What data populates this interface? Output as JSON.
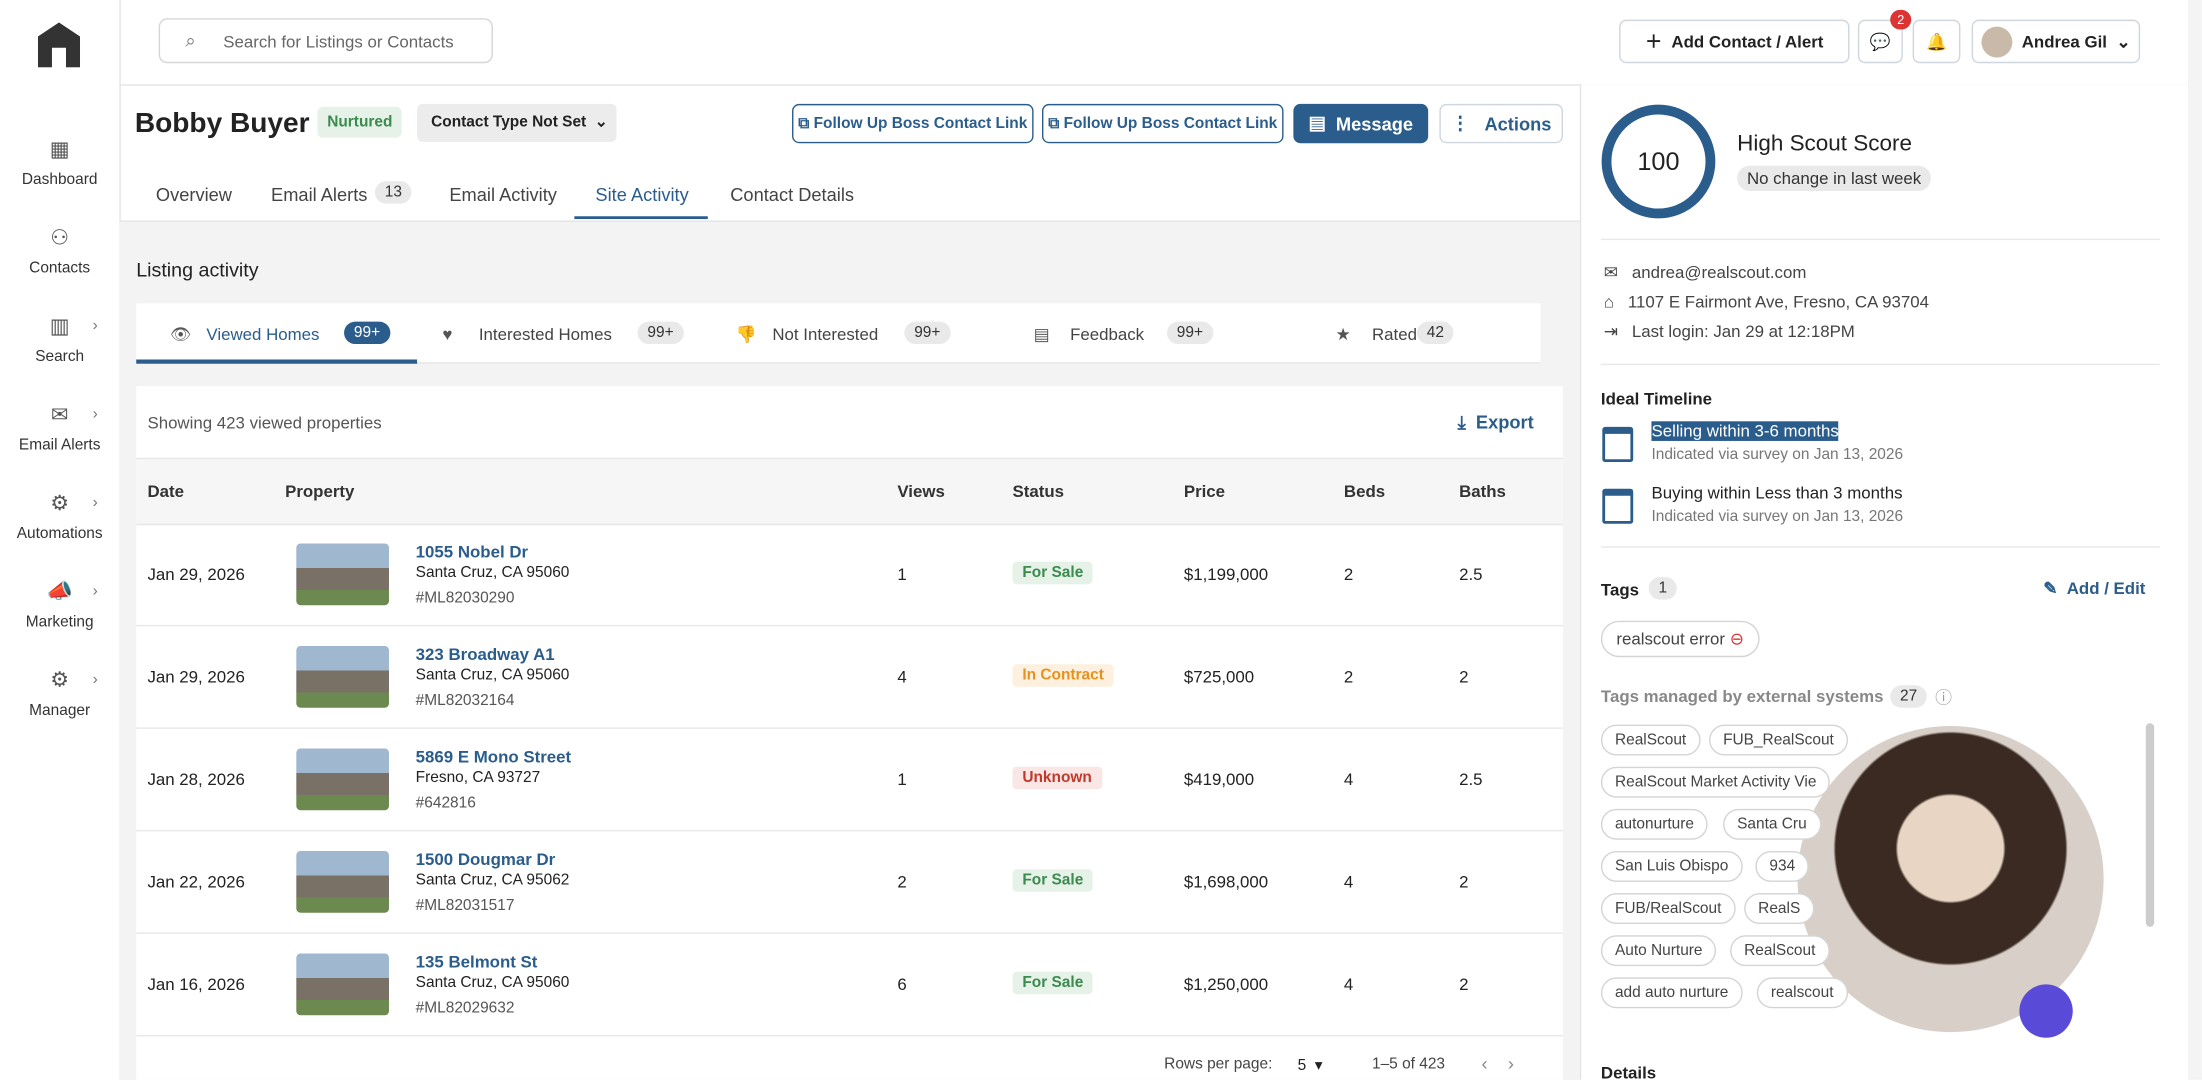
{
  "sidebar": {
    "items": [
      "Dashboard",
      "Contacts",
      "Search",
      "Email Alerts",
      "Automations",
      "Marketing",
      "Manager"
    ]
  },
  "topbar": {
    "search_placeholder": "Search for Listings or Contacts",
    "add_button": "Add Contact / Alert",
    "message_badge": "2",
    "user": "Andrea Gil"
  },
  "contact": {
    "name": "Bobby Buyer",
    "status": "Nurtured",
    "contact_type": "Contact Type Not Set",
    "link_buttons": [
      "Follow Up Boss Contact Link",
      "Follow Up Boss Contact Link"
    ],
    "message_button": "Message",
    "actions_button": "Actions"
  },
  "tabs": [
    {
      "label": "Overview"
    },
    {
      "label": "Email Alerts",
      "count": "13"
    },
    {
      "label": "Email Activity"
    },
    {
      "label": "Site Activity"
    },
    {
      "label": "Contact Details"
    }
  ],
  "listing": {
    "title": "Listing activity",
    "subtabs": [
      {
        "label": "Viewed Homes",
        "count": "99+"
      },
      {
        "label": "Interested Homes",
        "count": "99+"
      },
      {
        "label": "Not Interested",
        "count": "99+"
      },
      {
        "label": "Feedback",
        "count": "99+"
      },
      {
        "label": "Rated",
        "count": "42"
      }
    ],
    "summary": "Showing 423 viewed properties",
    "export": "Export",
    "columns": [
      "Date",
      "Property",
      "Views",
      "Status",
      "Price",
      "Beds",
      "Baths"
    ],
    "rows": [
      {
        "date": "Jan 29, 2026",
        "address": "1055 Nobel Dr",
        "city": "Santa Cruz, CA 95060",
        "mls": "#ML82030290",
        "views": "1",
        "status": "For Sale",
        "price": "$1,199,000",
        "beds": "2",
        "baths": "2.5"
      },
      {
        "date": "Jan 29, 2026",
        "address": "323 Broadway A1",
        "city": "Santa Cruz, CA 95060",
        "mls": "#ML82032164",
        "views": "4",
        "status": "In Contract",
        "price": "$725,000",
        "beds": "2",
        "baths": "2"
      },
      {
        "date": "Jan 28, 2026",
        "address": "5869 E Mono Street",
        "city": "Fresno, CA 93727",
        "mls": "#642816",
        "views": "1",
        "status": "Unknown",
        "price": "$419,000",
        "beds": "4",
        "baths": "2.5"
      },
      {
        "date": "Jan 22, 2026",
        "address": "1500 Dougmar Dr",
        "city": "Santa Cruz, CA 95062",
        "mls": "#ML82031517",
        "views": "2",
        "status": "For Sale",
        "price": "$1,698,000",
        "beds": "4",
        "baths": "2"
      },
      {
        "date": "Jan 16, 2026",
        "address": "135 Belmont St",
        "city": "Santa Cruz, CA 95060",
        "mls": "#ML82029632",
        "views": "6",
        "status": "For Sale",
        "price": "$1,250,000",
        "beds": "4",
        "baths": "2"
      }
    ],
    "footer": {
      "rows_label": "Rows per page:",
      "rows_value": "5",
      "range": "1–5 of 423"
    }
  },
  "profile": {
    "score": "100",
    "score_label": "High Scout Score",
    "score_change": "No change in last week",
    "email": "andrea@realscout.com",
    "address": "1107 E Fairmont Ave, Fresno, CA 93704",
    "last_login": "Last login: Jan 29 at 12:18PM",
    "timeline_title": "Ideal Timeline",
    "timeline": [
      {
        "title": "Selling within 3-6 months",
        "note": "Indicated via survey on Jan 13, 2026"
      },
      {
        "title": "Buying within Less than 3 months",
        "note": "Indicated via survey on Jan 13, 2026"
      }
    ],
    "tags_title": "Tags",
    "tags_count": "1",
    "tags_edit": "Add / Edit",
    "tags": [
      "realscout error"
    ],
    "external_title": "Tags managed by external systems",
    "external_count": "27",
    "external_tags": [
      "RealScout",
      "FUB_RealScout",
      "RealScout Market Activity Vie",
      "autonurture",
      "Santa Cru",
      "San Luis Obispo",
      "934",
      "FUB/RealScout",
      "RealS",
      "Auto Nurture",
      "RealScout",
      "add auto nurture",
      "realscout"
    ],
    "details_title": "Details"
  }
}
